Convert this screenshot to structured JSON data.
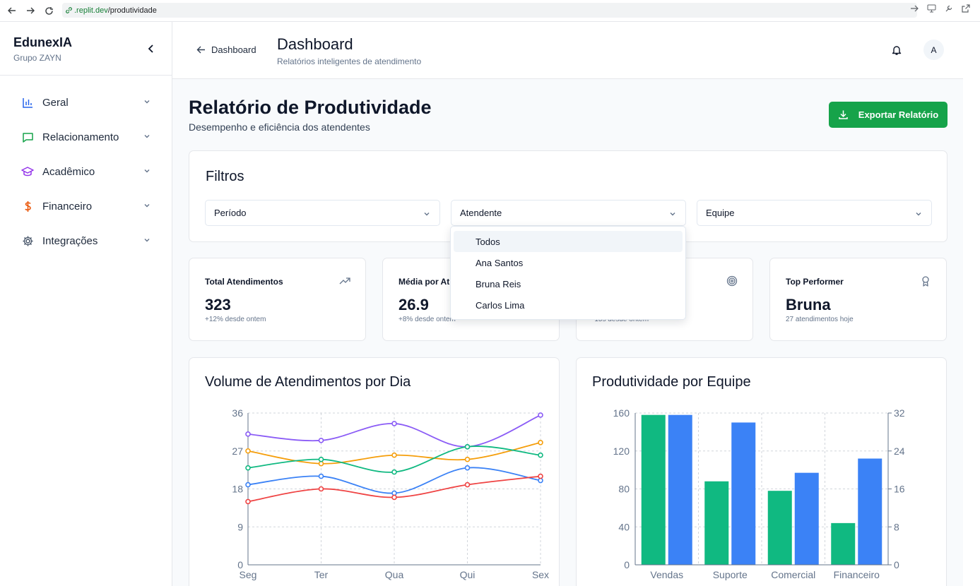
{
  "browser": {
    "url_domain": ".replit.dev",
    "url_path": "/produtividade"
  },
  "sidebar": {
    "brand": "EdunexIA",
    "group": "Grupo ZAYN",
    "items": [
      {
        "label": "Geral",
        "icon": "bar-chart-icon",
        "color": "#2563eb"
      },
      {
        "label": "Relacionamento",
        "icon": "message-icon",
        "color": "#16a34a"
      },
      {
        "label": "Acadêmico",
        "icon": "graduation-cap-icon",
        "color": "#9333ea"
      },
      {
        "label": "Financeiro",
        "icon": "dollar-icon",
        "color": "#ea580c"
      },
      {
        "label": "Integrações",
        "icon": "gear-icon",
        "color": "#475569"
      }
    ]
  },
  "header": {
    "back_label": "Dashboard",
    "title": "Dashboard",
    "subtitle": "Relatórios inteligentes de atendimento",
    "avatar_initial": "A"
  },
  "page": {
    "title": "Relatório de Produtividade",
    "subtitle": "Desempenho e eficiência dos atendentes",
    "export_label": "Exportar Relatório"
  },
  "filters": {
    "title": "Filtros",
    "period_placeholder": "Período",
    "attendant_placeholder": "Atendente",
    "team_placeholder": "Equipe",
    "attendant_options": [
      "Todos",
      "Ana Santos",
      "Bruna Reis",
      "Carlos Lima"
    ]
  },
  "stats": [
    {
      "label": "Total Atendimentos",
      "value": "323",
      "sub": "+12% desde ontem",
      "icon": "trending-up-icon"
    },
    {
      "label": "Média por At",
      "value": "26.9",
      "sub": "+8% desde ontem",
      "icon": "clock-icon"
    },
    {
      "label": "",
      "value": "",
      "sub": "-15s desde ontem",
      "icon": "target-icon"
    },
    {
      "label": "Top Performer",
      "value": "Bruna",
      "sub": "27 atendimentos hoje",
      "icon": "award-icon"
    }
  ],
  "colors": {
    "green": "#10b981",
    "blue": "#3b82f6",
    "purple": "#8b5cf6",
    "orange": "#f59e0b",
    "red": "#ef4444",
    "accent": "#16a34a"
  },
  "chart_data": [
    {
      "type": "line",
      "title": "Volume de Atendimentos por Dia",
      "categories": [
        "Seg",
        "Ter",
        "Qua",
        "Qui",
        "Sex"
      ],
      "ylim": [
        0,
        36
      ],
      "yticks": [
        0,
        9,
        18,
        27,
        36
      ],
      "grid": true,
      "series": [
        {
          "name": "purple",
          "color": "#8b5cf6",
          "values": [
            31,
            29.5,
            33.5,
            28,
            35.5
          ]
        },
        {
          "name": "orange",
          "color": "#f59e0b",
          "values": [
            27,
            24,
            26,
            25,
            29
          ]
        },
        {
          "name": "green",
          "color": "#10b981",
          "values": [
            23,
            25,
            22,
            28,
            26
          ]
        },
        {
          "name": "blue",
          "color": "#3b82f6",
          "values": [
            19,
            21,
            17,
            23,
            20
          ]
        },
        {
          "name": "red",
          "color": "#ef4444",
          "values": [
            15,
            18,
            16,
            19,
            21
          ]
        }
      ]
    },
    {
      "type": "bar",
      "title": "Produtividade por Equipe",
      "categories": [
        "Vendas",
        "Suporte",
        "Comercial",
        "Financeiro"
      ],
      "ylim_left": [
        0,
        160
      ],
      "yticks_left": [
        0,
        40,
        80,
        120,
        160
      ],
      "ylim_right": [
        0,
        32
      ],
      "yticks_right": [
        0,
        8,
        16,
        24,
        32
      ],
      "grid": true,
      "series": [
        {
          "name": "green",
          "color": "#10b981",
          "axis": "left",
          "values": [
            158,
            88,
            78,
            44
          ]
        },
        {
          "name": "blue",
          "color": "#3b82f6",
          "axis": "right",
          "values": [
            31.6,
            30,
            19.4,
            22.4
          ]
        }
      ]
    }
  ]
}
